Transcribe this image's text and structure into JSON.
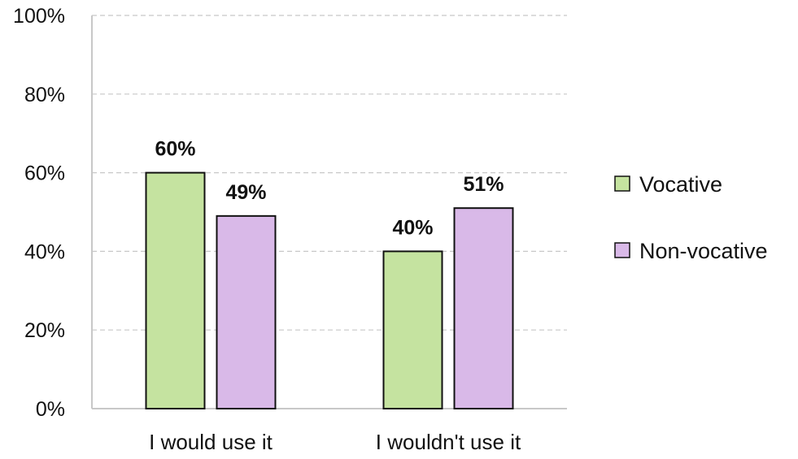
{
  "chart_data": {
    "type": "bar",
    "categories": [
      "I would use it",
      "I wouldn't use it"
    ],
    "series": [
      {
        "name": "Vocative",
        "values": [
          60,
          40
        ],
        "color": "#c5e3a0"
      },
      {
        "name": "Non-vocative",
        "values": [
          49,
          51
        ],
        "color": "#d9b9e8"
      }
    ],
    "data_labels": [
      [
        "60%",
        "40%"
      ],
      [
        "49%",
        "51%"
      ]
    ],
    "ylim": [
      0,
      100
    ],
    "yticks": [
      0,
      20,
      40,
      60,
      80,
      100
    ],
    "ytick_labels": [
      "0%",
      "20%",
      "40%",
      "60%",
      "80%",
      "100%"
    ],
    "title": "",
    "xlabel": "",
    "ylabel": "",
    "grid": "horizontal dashed",
    "legend_position": "right"
  },
  "colors": {
    "bar_border": "#111111",
    "grid": "#c8c8c8",
    "axis": "#c8c8c8"
  }
}
